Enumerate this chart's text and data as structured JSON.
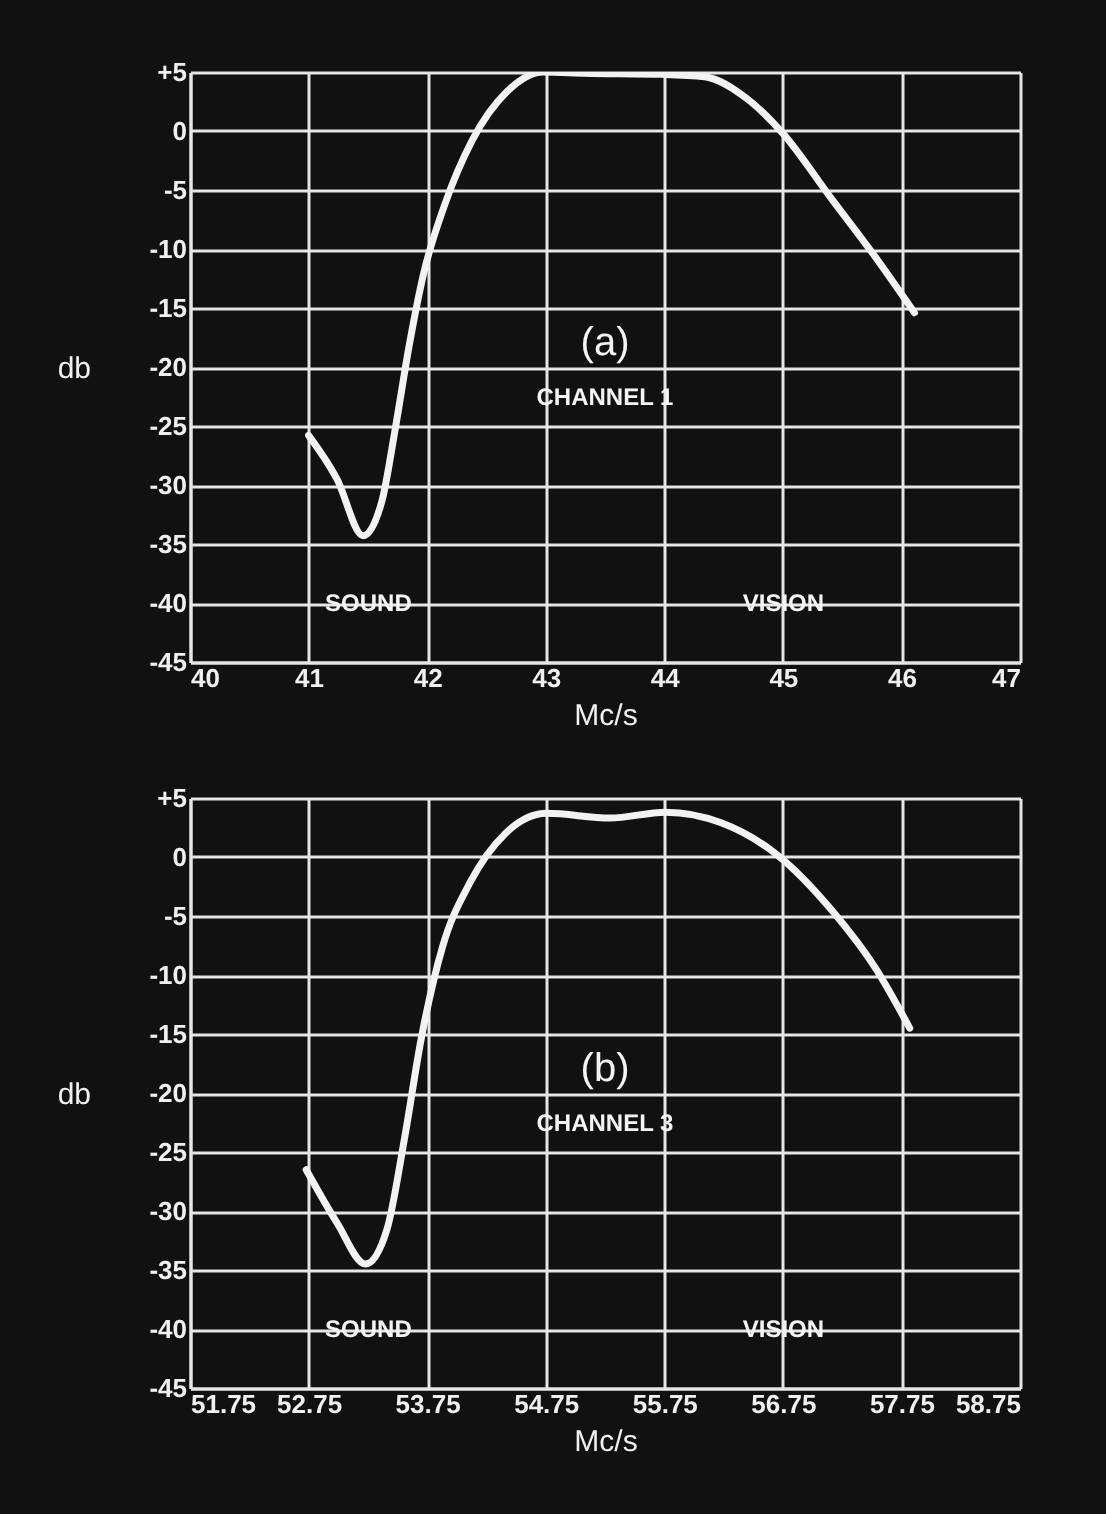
{
  "chart_data": [
    {
      "type": "line",
      "xlabel": "Mc/s",
      "ylabel": "db",
      "color": "#f2f2f2",
      "grid": true,
      "x": [
        41,
        41.24,
        41.46,
        41.62,
        41.73,
        41.85,
        41.97,
        42.15,
        42.38,
        42.68,
        42.98,
        43.33,
        43.98,
        44.34,
        44.69,
        45,
        45.4,
        45.76,
        46.11
      ],
      "values": [
        -25.8,
        -29.5,
        -34.3,
        -31.3,
        -25.3,
        -18.1,
        -12.1,
        -6.2,
        -0.8,
        3.4,
        5,
        4.9,
        4.8,
        4.6,
        2.8,
        -0.2,
        -5.6,
        -10.4,
        -15.4
      ],
      "xlim": [
        40,
        47
      ],
      "xticks": [
        40,
        41,
        42,
        43,
        44,
        45,
        46,
        47
      ],
      "ylim": [
        -45,
        5
      ],
      "yticks": [
        {
          "value": 5,
          "label": "+5"
        },
        0,
        -5,
        -10,
        -15,
        -20,
        -25,
        -30,
        -35,
        -40,
        -45
      ],
      "annotations": [
        "(a)",
        "CHANNEL 1",
        "SOUND",
        "VISION"
      ]
    },
    {
      "type": "line",
      "xlabel": "Mc/s",
      "ylabel": "db",
      "color": "#f2f2f2",
      "grid": true,
      "x": [
        52.73,
        52.99,
        53.23,
        53.41,
        53.56,
        53.7,
        53.88,
        54.11,
        54.41,
        54.76,
        55.29,
        55.76,
        56.23,
        56.7,
        57.17,
        57.53,
        57.82
      ],
      "values": [
        -26.5,
        -31,
        -34.5,
        -31.6,
        -23.8,
        -15.4,
        -7.6,
        -2.2,
        2,
        3.7,
        3.3,
        3.8,
        2.9,
        0.2,
        -4.6,
        -9.4,
        -14.5
      ],
      "xlim": [
        51.75,
        58.75
      ],
      "xticks": [
        51.75,
        52.75,
        53.75,
        54.75,
        55.75,
        56.75,
        57.75,
        58.75
      ],
      "ylim": [
        -45,
        5
      ],
      "yticks": [
        {
          "value": 5,
          "label": "+5"
        },
        0,
        -5,
        -10,
        -15,
        -20,
        -25,
        -30,
        -35,
        -40,
        -45
      ],
      "annotations": [
        "(b)",
        "CHANNEL 3",
        "SOUND",
        "VISION"
      ]
    }
  ]
}
